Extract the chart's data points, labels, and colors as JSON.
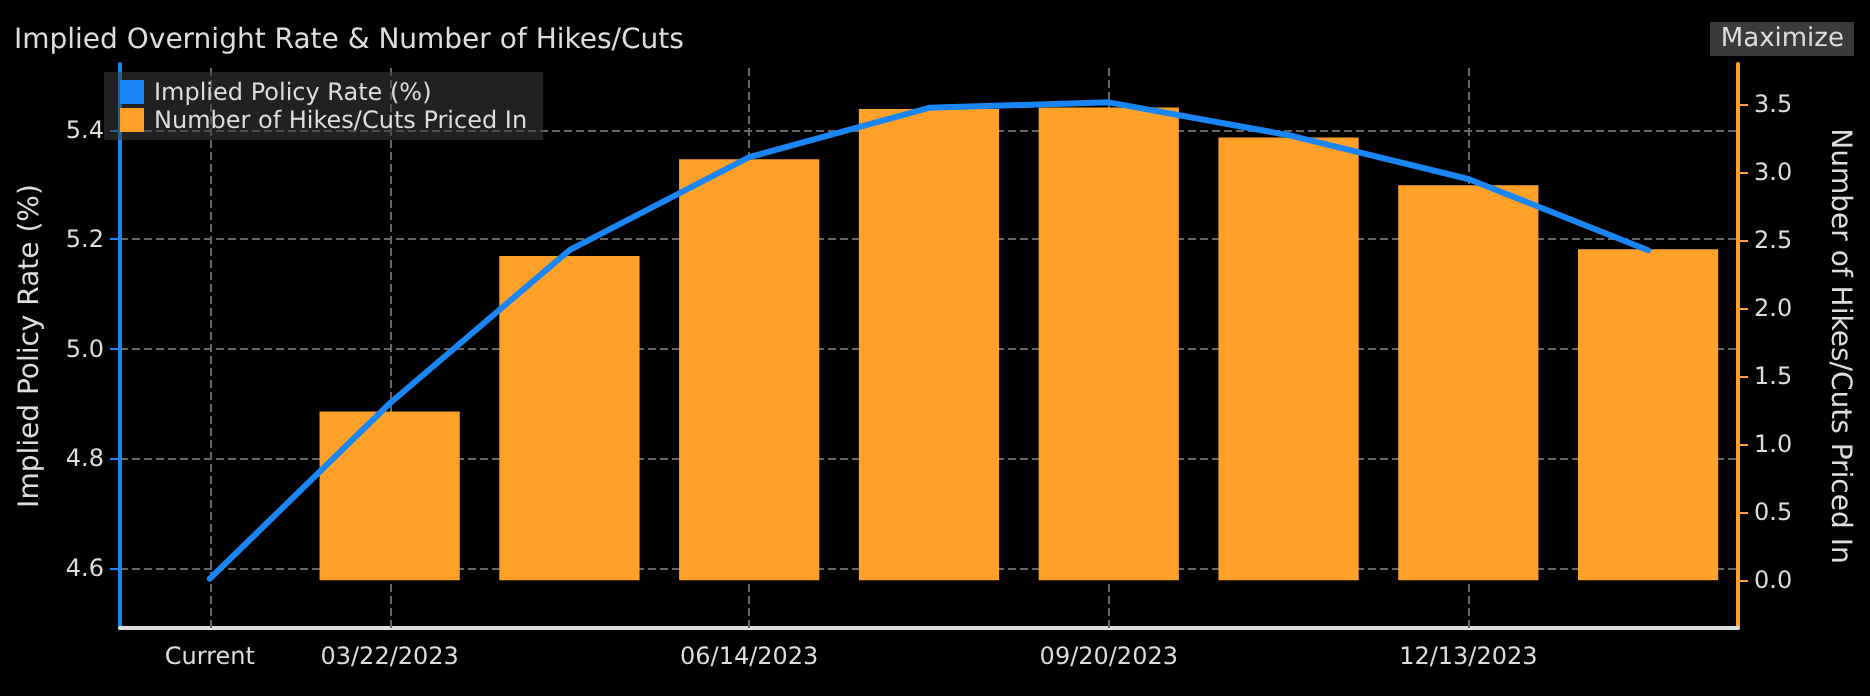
{
  "chart_data": {
    "type": "bar",
    "title": "Implied Overnight Rate & Number of Hikes/Cuts",
    "ylabel": "Implied Policy Rate (%)",
    "y2label": "Number of Hikes/Cuts Priced In",
    "annotations": [
      "Maximize"
    ],
    "categories": [
      "Current",
      "03/22/2023",
      null,
      "06/14/2023",
      null,
      "09/20/2023",
      null,
      "12/13/2023",
      null
    ],
    "series": [
      {
        "name": "Implied Policy Rate (%)",
        "type": "line",
        "color": "#1a86f5",
        "values": [
          4.58,
          4.9,
          5.18,
          5.35,
          5.44,
          5.45,
          5.39,
          5.31,
          5.18
        ]
      },
      {
        "name": "Number of Hikes/Cuts Priced In",
        "axis": "y2",
        "color": "#ffa028",
        "values": [
          0,
          1.24,
          2.38,
          3.09,
          3.46,
          3.47,
          3.25,
          2.9,
          2.43
        ]
      }
    ],
    "ylim": [
      4.49,
      5.52
    ],
    "yticks": [
      {
        "value": 4.6,
        "label": "4.6"
      },
      {
        "value": 4.8,
        "label": "4.8"
      },
      {
        "value": 5.0,
        "label": "5.0"
      },
      {
        "value": 5.2,
        "label": "5.2"
      },
      {
        "value": 5.4,
        "label": "5.4"
      }
    ],
    "y2lim": [
      -0.35,
      3.79
    ],
    "y2ticks": [
      {
        "value": 0,
        "label": "0.0"
      },
      {
        "value": 0.5,
        "label": "0.5"
      },
      {
        "value": 1,
        "label": "1.0"
      },
      {
        "value": 1.5,
        "label": "1.5"
      },
      {
        "value": 2,
        "label": "2.0"
      },
      {
        "value": 2.5,
        "label": "2.5"
      },
      {
        "value": 3,
        "label": "3.0"
      },
      {
        "value": 3.5,
        "label": "3.5"
      }
    ],
    "grid": true,
    "legend": "top left",
    "marker": "none",
    "line_style": "solid"
  }
}
